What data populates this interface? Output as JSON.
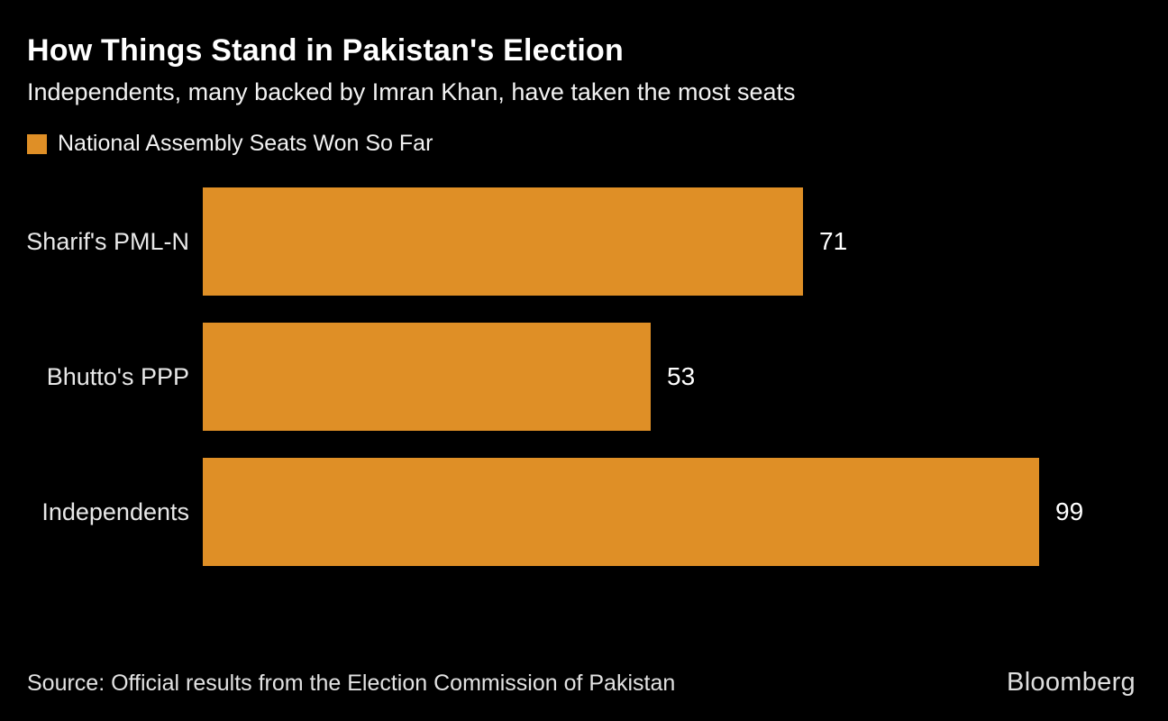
{
  "colors": {
    "background": "#000000",
    "accent": "#DF8F26",
    "title_text": "#ffffff",
    "body_text": "#e8e8e8"
  },
  "header": {
    "title": "How Things Stand in Pakistan's Election",
    "subtitle": "Independents, many backed by Imran Khan, have taken the most seats"
  },
  "legend": {
    "label": "National Assembly Seats Won So Far",
    "swatch_color": "#DF8F26"
  },
  "chart_data": {
    "type": "bar",
    "orientation": "horizontal",
    "title": "National Assembly Seats Won So Far",
    "categories": [
      "Sharif's PML-N",
      "Bhutto's PPP",
      "Independents"
    ],
    "values": [
      71,
      53,
      99
    ],
    "xlabel": "",
    "ylabel": "",
    "xlim": [
      0,
      99
    ],
    "grid": false,
    "legend_position": "top-left",
    "bar_color": "#DF8F26",
    "value_labels_shown": true
  },
  "footer": {
    "source": "Source: Official results from the Election Commission of Pakistan",
    "brand": "Bloomberg"
  }
}
